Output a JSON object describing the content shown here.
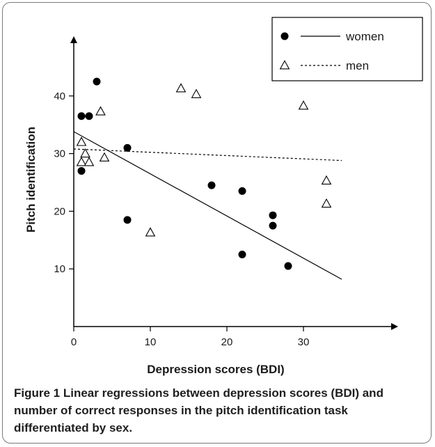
{
  "chart_data": {
    "type": "scatter",
    "xlabel": "Depression scores (BDI)",
    "ylabel": "Pitch identification",
    "xlim": [
      0,
      40
    ],
    "ylim": [
      0,
      52
    ],
    "x_ticks": [
      0,
      10,
      20,
      30
    ],
    "y_ticks": [
      10,
      20,
      30,
      40
    ],
    "legend_placement": "top-right",
    "series": [
      {
        "name": "women",
        "marker": "filled-circle",
        "line_style": "solid",
        "points": [
          {
            "x": 1,
            "y": 36.5
          },
          {
            "x": 2,
            "y": 36.5
          },
          {
            "x": 3,
            "y": 42.5
          },
          {
            "x": 1,
            "y": 27
          },
          {
            "x": 7,
            "y": 31
          },
          {
            "x": 7,
            "y": 18.5
          },
          {
            "x": 18,
            "y": 24.5
          },
          {
            "x": 22,
            "y": 23.5
          },
          {
            "x": 22,
            "y": 12.5
          },
          {
            "x": 26,
            "y": 19.3
          },
          {
            "x": 26,
            "y": 17.5
          },
          {
            "x": 28,
            "y": 10.5
          }
        ],
        "regression": {
          "x": [
            0,
            35
          ],
          "y": [
            33.8,
            8.2
          ]
        }
      },
      {
        "name": "men",
        "marker": "open-triangle",
        "line_style": "dashed",
        "points": [
          {
            "x": 1,
            "y": 32
          },
          {
            "x": 1.5,
            "y": 30
          },
          {
            "x": 1,
            "y": 28.5
          },
          {
            "x": 2,
            "y": 28.5
          },
          {
            "x": 3.5,
            "y": 37.3
          },
          {
            "x": 4,
            "y": 29.3
          },
          {
            "x": 10,
            "y": 16.3
          },
          {
            "x": 14,
            "y": 41.3
          },
          {
            "x": 16,
            "y": 40.3
          },
          {
            "x": 30,
            "y": 38.3
          },
          {
            "x": 33,
            "y": 25.3
          },
          {
            "x": 33,
            "y": 21.3
          }
        ],
        "regression": {
          "x": [
            0,
            35
          ],
          "y": [
            30.8,
            28.8
          ]
        }
      }
    ]
  },
  "caption": {
    "label": "Figure 1",
    "text": "Linear regressions between depression scores (BDI) and number of correct responses in the pitch identification task differentiated by sex."
  }
}
